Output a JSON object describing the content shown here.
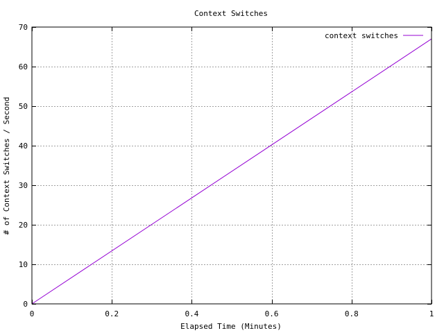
{
  "chart_data": {
    "type": "line",
    "title": "Context Switches",
    "xlabel": "Elapsed Time (Minutes)",
    "ylabel": "# of Context Switches / Second",
    "xlim": [
      0,
      1
    ],
    "ylim": [
      0,
      70
    ],
    "xticks": [
      0,
      0.2,
      0.4,
      0.6,
      0.8,
      1
    ],
    "xtick_labels": [
      "0",
      "0.2",
      "0.4",
      "0.6",
      "0.8",
      "1"
    ],
    "yticks": [
      0,
      10,
      20,
      30,
      40,
      50,
      60,
      70
    ],
    "ytick_labels": [
      "0",
      "10",
      "20",
      "30",
      "40",
      "50",
      "60",
      "70"
    ],
    "grid": true,
    "legend_position": "top-right",
    "series": [
      {
        "name": "context switches",
        "color": "#9400d3",
        "x": [
          0,
          1
        ],
        "y": [
          0,
          67
        ]
      }
    ]
  }
}
